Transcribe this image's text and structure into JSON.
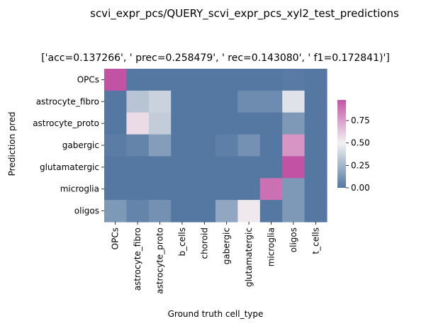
{
  "chart_data": {
    "type": "heatmap",
    "suptitle": "scvi_expr_pcs/QUERY_scvi_expr_pcs_xyl2_test_predictions",
    "title": "['acc=0.137266', '  prec=0.258479', ' rec=0.143080', ' f1=0.172841)']",
    "xlabel": "Ground truth cell_type",
    "ylabel": "Prediction pred",
    "x_categories": [
      "OPCs",
      "astrocyte_fibro",
      "astrocyte_proto",
      "b_cells",
      "choroid",
      "gabergic",
      "glutamatergic",
      "microglia",
      "oligos",
      "t_cells"
    ],
    "y_categories": [
      "OPCs",
      "astrocyte_fibro",
      "astrocyte_proto",
      "gabergic",
      "glutamatergic",
      "microglia",
      "oligos"
    ],
    "values": [
      [
        0.98,
        0.0,
        0.0,
        0.0,
        0.0,
        0.0,
        0.0,
        0.0,
        0.01,
        0.0
      ],
      [
        0.0,
        0.31,
        0.37,
        0.0,
        0.0,
        0.0,
        0.08,
        0.08,
        0.44,
        0.0
      ],
      [
        0.0,
        0.57,
        0.35,
        0.0,
        0.0,
        0.0,
        0.0,
        0.0,
        0.13,
        0.0
      ],
      [
        0.02,
        0.05,
        0.15,
        0.0,
        0.0,
        0.03,
        0.1,
        0.0,
        0.78,
        0.0
      ],
      [
        0.0,
        0.0,
        0.0,
        0.0,
        0.0,
        0.0,
        0.0,
        0.0,
        0.98,
        0.0
      ],
      [
        0.0,
        0.0,
        0.0,
        0.0,
        0.0,
        0.0,
        0.0,
        0.89,
        0.13,
        0.0
      ],
      [
        0.13,
        0.05,
        0.1,
        0.0,
        0.0,
        0.19,
        0.53,
        0.0,
        0.13,
        0.0
      ]
    ],
    "vmin": 0.0,
    "vmax": 0.98,
    "colormap": {
      "low": "#5578a2",
      "mid": "#f2f2f2",
      "high": "#c253a4"
    },
    "colorbar_ticks": [
      "0.00",
      "0.25",
      "0.50",
      "0.75"
    ],
    "colorbar_tick_values": [
      0.0,
      0.25,
      0.5,
      0.75
    ]
  }
}
